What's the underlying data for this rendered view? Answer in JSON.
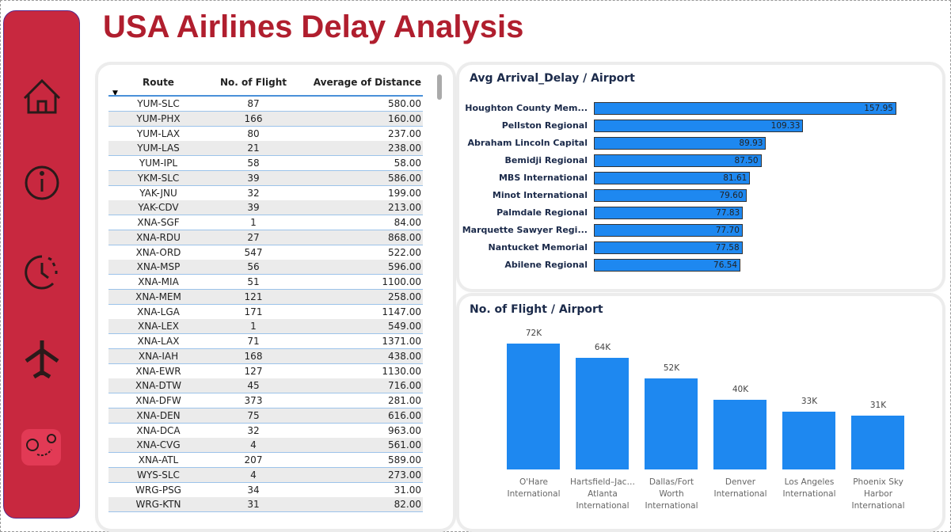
{
  "header": {
    "title": "USA Airlines Delay Analysis"
  },
  "table": {
    "columns": [
      "Route",
      "No. of Flight",
      "Average of Distance"
    ],
    "rows": [
      [
        "YUM-SLC",
        "87",
        "580.00"
      ],
      [
        "YUM-PHX",
        "166",
        "160.00"
      ],
      [
        "YUM-LAX",
        "80",
        "237.00"
      ],
      [
        "YUM-LAS",
        "21",
        "238.00"
      ],
      [
        "YUM-IPL",
        "58",
        "58.00"
      ],
      [
        "YKM-SLC",
        "39",
        "586.00"
      ],
      [
        "YAK-JNU",
        "32",
        "199.00"
      ],
      [
        "YAK-CDV",
        "39",
        "213.00"
      ],
      [
        "XNA-SGF",
        "1",
        "84.00"
      ],
      [
        "XNA-RDU",
        "27",
        "868.00"
      ],
      [
        "XNA-ORD",
        "547",
        "522.00"
      ],
      [
        "XNA-MSP",
        "56",
        "596.00"
      ],
      [
        "XNA-MIA",
        "51",
        "1100.00"
      ],
      [
        "XNA-MEM",
        "121",
        "258.00"
      ],
      [
        "XNA-LGA",
        "171",
        "1147.00"
      ],
      [
        "XNA-LEX",
        "1",
        "549.00"
      ],
      [
        "XNA-LAX",
        "71",
        "1371.00"
      ],
      [
        "XNA-IAH",
        "168",
        "438.00"
      ],
      [
        "XNA-EWR",
        "127",
        "1130.00"
      ],
      [
        "XNA-DTW",
        "45",
        "716.00"
      ],
      [
        "XNA-DFW",
        "373",
        "281.00"
      ],
      [
        "XNA-DEN",
        "75",
        "616.00"
      ],
      [
        "XNA-DCA",
        "32",
        "963.00"
      ],
      [
        "XNA-CVG",
        "4",
        "561.00"
      ],
      [
        "XNA-ATL",
        "207",
        "589.00"
      ],
      [
        "WYS-SLC",
        "4",
        "273.00"
      ],
      [
        "WRG-PSG",
        "34",
        "31.00"
      ],
      [
        "WRG-KTN",
        "31",
        "82.00"
      ]
    ]
  },
  "chart_data": [
    {
      "type": "hbar",
      "title": "Avg Arrival_Delay / Airport",
      "color": "#1e88f0",
      "categories": [
        "Houghton County Mem...",
        "Pellston Regional",
        "Abraham Lincoln Capital",
        "Bemidji Regional",
        "MBS International",
        "Minot International",
        "Palmdale Regional",
        "Marquette Sawyer Regi...",
        "Nantucket Memorial",
        "Abilene Regional"
      ],
      "values": [
        157.95,
        109.33,
        89.93,
        87.5,
        81.61,
        79.6,
        77.83,
        77.7,
        77.58,
        76.54
      ],
      "value_labels": [
        "157.95",
        "109.33",
        "89.93",
        "87.50",
        "81.61",
        "79.60",
        "77.83",
        "77.70",
        "77.58",
        "76.54"
      ]
    },
    {
      "type": "bar",
      "title": "No. of Flight / Airport",
      "color": "#1e88f0",
      "categories": [
        "O'Hare International",
        "Hartsfield–Jac… Atlanta International",
        "Dallas/Fort Worth International",
        "Denver International",
        "Los Angeles International",
        "Phoenix Sky Harbor International"
      ],
      "values": [
        72000,
        64000,
        52000,
        40000,
        33000,
        31000
      ],
      "value_labels": [
        "72K",
        "64K",
        "52K",
        "40K",
        "33K",
        "31K"
      ]
    }
  ]
}
